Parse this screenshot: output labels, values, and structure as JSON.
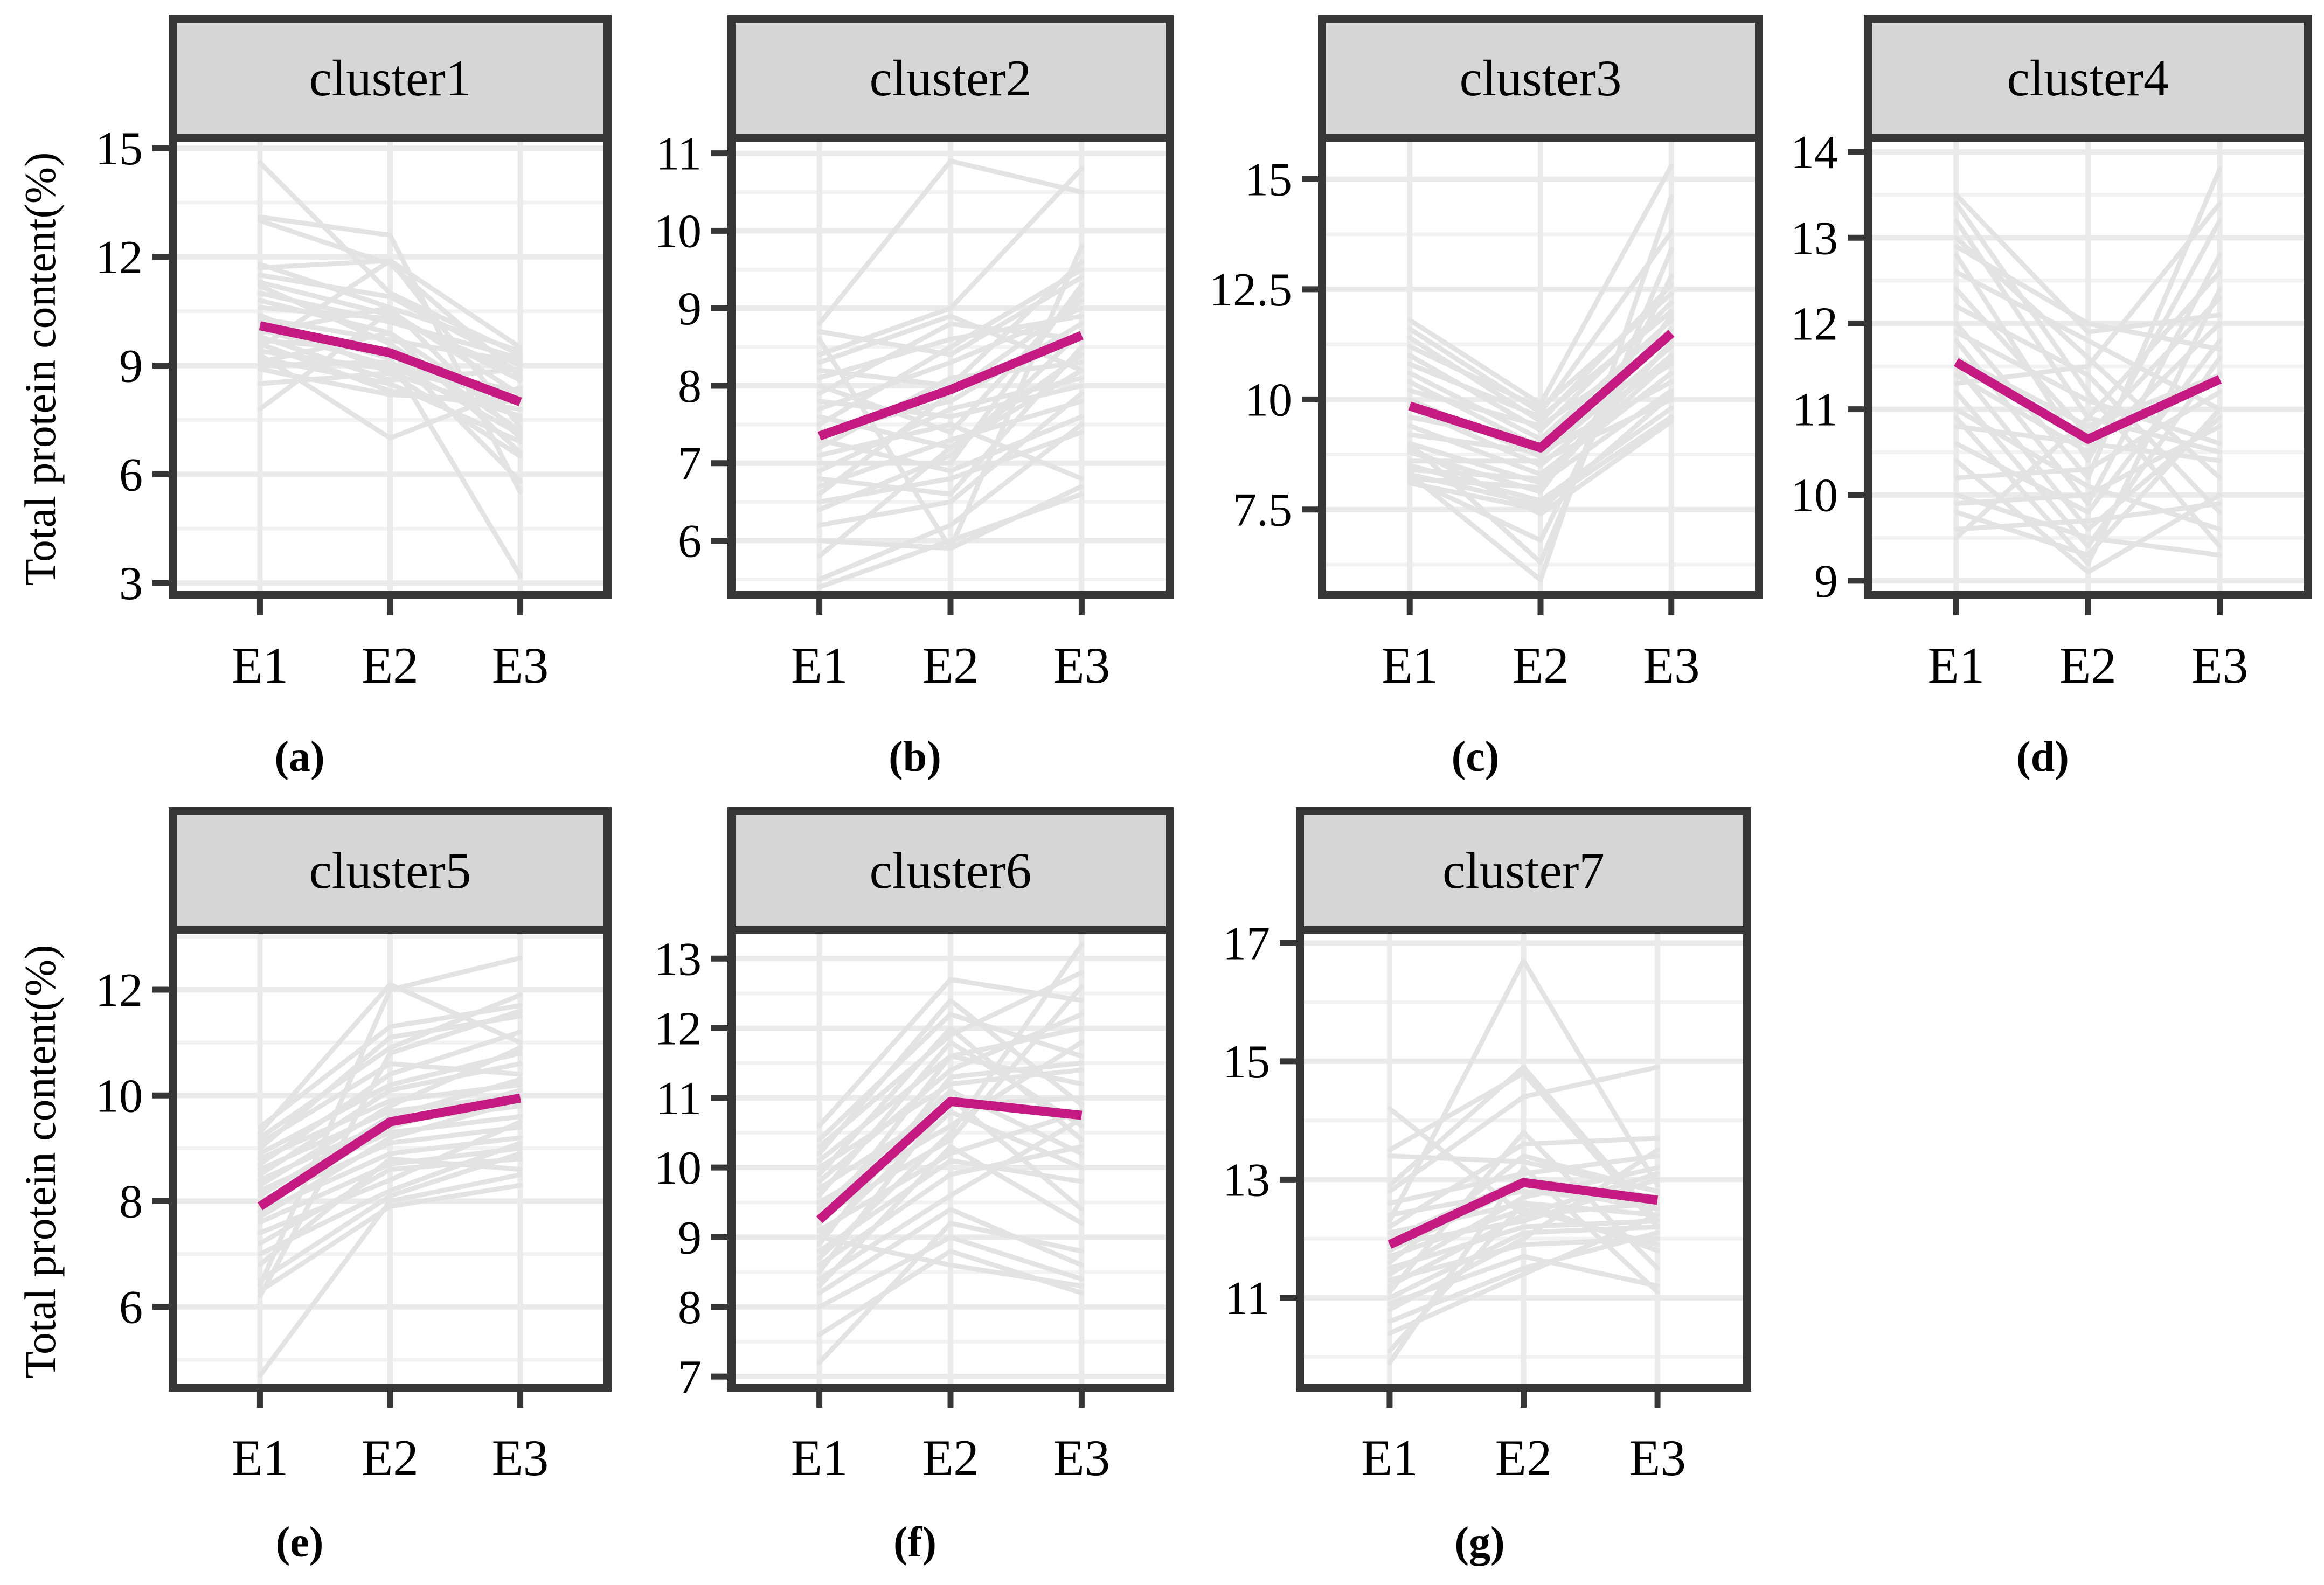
{
  "figure": {
    "ylabel": "Total protein content(%)",
    "categories": [
      "E1",
      "E2",
      "E3"
    ]
  },
  "colors": {
    "mean_line": "#C41A81",
    "member_line": "#E3E3E3",
    "grid_major": "#EAEAEA",
    "grid_minor": "#F2F2F2",
    "panel_border": "#363636",
    "header_fill": "#D6D6D6",
    "text": "#000000",
    "background": "#FFFFFF"
  },
  "chart_data": [
    {
      "type": "line",
      "title": "cluster1",
      "caption": "(a)",
      "categories": [
        "E1",
        "E2",
        "E3"
      ],
      "xlabel": "",
      "ylabel": "Total protein content(%)",
      "show_ylabel": true,
      "grid": true,
      "ylim": [
        2.78,
        15.18
      ],
      "y_ticks": [
        "3",
        "6",
        "9",
        "12",
        "15"
      ],
      "y_tick_values": [
        3,
        6,
        9,
        12,
        15
      ],
      "y_minor": [
        4.5,
        7.5,
        10.5,
        13.5
      ],
      "series": [
        {
          "name": "mean",
          "values": [
            10.1,
            9.35,
            8.0
          ]
        }
      ],
      "members": [
        [
          14.6,
          11.0,
          9.3
        ],
        [
          13.1,
          12.6,
          5.5
        ],
        [
          13.0,
          11.8,
          8.7
        ],
        [
          11.8,
          10.6,
          9.4
        ],
        [
          11.7,
          11.9,
          7.3
        ],
        [
          11.5,
          10.9,
          9.0
        ],
        [
          11.3,
          10.4,
          8.6
        ],
        [
          11.2,
          9.6,
          7.2
        ],
        [
          11.0,
          10.2,
          9.2
        ],
        [
          10.8,
          9.9,
          6.6
        ],
        [
          10.6,
          10.3,
          8.8
        ],
        [
          10.4,
          8.8,
          7.6
        ],
        [
          10.3,
          9.7,
          9.1
        ],
        [
          10.2,
          9.2,
          3.2
        ],
        [
          10.0,
          9.0,
          8.3
        ],
        [
          9.9,
          10.6,
          7.0
        ],
        [
          9.8,
          8.6,
          8.9
        ],
        [
          9.7,
          9.4,
          5.8
        ],
        [
          9.6,
          8.3,
          7.8
        ],
        [
          9.5,
          11.9,
          9.5
        ],
        [
          9.4,
          8.9,
          8.1
        ],
        [
          9.3,
          7.0,
          8.4
        ],
        [
          9.2,
          8.5,
          6.9
        ],
        [
          9.1,
          9.9,
          7.5
        ],
        [
          8.9,
          8.2,
          8.0
        ],
        [
          8.5,
          8.8,
          6.5
        ],
        [
          7.8,
          10.5,
          8.2
        ],
        [
          9.0,
          9.1,
          7.1
        ]
      ]
    },
    {
      "type": "line",
      "title": "cluster2",
      "caption": "(b)",
      "categories": [
        "E1",
        "E2",
        "E3"
      ],
      "xlabel": "",
      "ylabel": "Total protein content(%)",
      "show_ylabel": false,
      "grid": true,
      "ylim": [
        5.35,
        11.15
      ],
      "y_ticks": [
        "6",
        "7",
        "8",
        "9",
        "10",
        "11"
      ],
      "y_tick_values": [
        6,
        7,
        8,
        9,
        10,
        11
      ],
      "y_minor": [
        5.5,
        6.5,
        7.5,
        8.5,
        9.5,
        10.5
      ],
      "series": [
        {
          "name": "mean",
          "values": [
            7.35,
            7.95,
            8.65
          ]
        }
      ],
      "members": [
        [
          8.8,
          10.9,
          10.5
        ],
        [
          8.7,
          8.4,
          9.4
        ],
        [
          8.4,
          9.0,
          10.8
        ],
        [
          8.3,
          8.9,
          8.2
        ],
        [
          8.2,
          8.0,
          9.6
        ],
        [
          8.1,
          8.6,
          8.9
        ],
        [
          8.0,
          7.4,
          9.2
        ],
        [
          7.9,
          8.8,
          8.6
        ],
        [
          7.8,
          7.6,
          8.0
        ],
        [
          7.7,
          8.3,
          9.0
        ],
        [
          7.6,
          7.2,
          8.4
        ],
        [
          7.5,
          8.5,
          9.5
        ],
        [
          7.4,
          7.8,
          8.8
        ],
        [
          7.3,
          6.9,
          7.6
        ],
        [
          7.2,
          8.1,
          8.3
        ],
        [
          7.1,
          7.5,
          6.8
        ],
        [
          7.0,
          7.0,
          9.3
        ],
        [
          6.9,
          7.7,
          8.1
        ],
        [
          6.8,
          6.6,
          8.5
        ],
        [
          6.7,
          7.3,
          7.8
        ],
        [
          6.6,
          7.9,
          9.1
        ],
        [
          6.5,
          6.8,
          7.4
        ],
        [
          6.4,
          7.1,
          8.7
        ],
        [
          6.2,
          6.5,
          7.9
        ],
        [
          6.0,
          5.9,
          6.7
        ],
        [
          5.8,
          7.2,
          8.2
        ],
        [
          5.5,
          6.2,
          7.5
        ],
        [
          5.4,
          6.0,
          6.6
        ],
        [
          8.6,
          5.9,
          9.8
        ]
      ]
    },
    {
      "type": "line",
      "title": "cluster3",
      "caption": "(c)",
      "categories": [
        "E1",
        "E2",
        "E3"
      ],
      "xlabel": "",
      "ylabel": "Total protein content(%)",
      "show_ylabel": false,
      "grid": true,
      "ylim": [
        5.65,
        15.85
      ],
      "y_ticks": [
        "7.5",
        "10",
        "12.5",
        "15"
      ],
      "y_tick_values": [
        7.5,
        10,
        12.5,
        15
      ],
      "y_minor": [
        6.25,
        8.75,
        11.25,
        13.75
      ],
      "series": [
        {
          "name": "mean",
          "values": [
            9.85,
            8.9,
            11.5
          ]
        }
      ],
      "members": [
        [
          11.8,
          9.9,
          15.3
        ],
        [
          11.6,
          9.7,
          13.8
        ],
        [
          11.4,
          9.5,
          12.6
        ],
        [
          11.2,
          9.8,
          12.4
        ],
        [
          11.0,
          9.3,
          12.2
        ],
        [
          10.8,
          9.6,
          12.0
        ],
        [
          10.6,
          9.1,
          11.8
        ],
        [
          10.4,
          8.9,
          11.6
        ],
        [
          10.2,
          9.4,
          11.4
        ],
        [
          10.0,
          8.7,
          11.2
        ],
        [
          9.8,
          8.5,
          11.0
        ],
        [
          9.6,
          9.0,
          10.8
        ],
        [
          9.4,
          8.3,
          10.6
        ],
        [
          9.2,
          8.8,
          10.4
        ],
        [
          9.0,
          8.1,
          10.2
        ],
        [
          8.8,
          7.9,
          11.9
        ],
        [
          8.6,
          8.6,
          10.0
        ],
        [
          8.5,
          7.7,
          9.8
        ],
        [
          8.4,
          8.2,
          10.9
        ],
        [
          8.3,
          7.6,
          9.6
        ],
        [
          8.2,
          8.0,
          11.3
        ],
        [
          8.1,
          7.5,
          10.1
        ],
        [
          8.2,
          6.8,
          12.8
        ],
        [
          8.3,
          5.9,
          14.6
        ],
        [
          9.0,
          6.3,
          13.4
        ],
        [
          8.9,
          7.4,
          9.5
        ]
      ]
    },
    {
      "type": "line",
      "title": "cluster4",
      "caption": "(d)",
      "categories": [
        "E1",
        "E2",
        "E3"
      ],
      "xlabel": "",
      "ylabel": "Total protein content(%)",
      "show_ylabel": false,
      "grid": true,
      "ylim": [
        8.88,
        14.12
      ],
      "y_ticks": [
        "9",
        "10",
        "11",
        "12",
        "13",
        "14"
      ],
      "y_tick_values": [
        9,
        10,
        11,
        12,
        13,
        14
      ],
      "y_minor": [
        9.5,
        10.5,
        11.5,
        12.5,
        13.5
      ],
      "series": [
        {
          "name": "mean",
          "values": [
            11.55,
            10.65,
            11.35
          ]
        }
      ],
      "members": [
        [
          13.5,
          11.9,
          12.1
        ],
        [
          13.4,
          11.2,
          9.4
        ],
        [
          13.2,
          10.9,
          12.6
        ],
        [
          13.0,
          11.6,
          10.2
        ],
        [
          12.8,
          10.4,
          13.2
        ],
        [
          12.6,
          11.8,
          11.0
        ],
        [
          12.4,
          10.7,
          12.3
        ],
        [
          12.2,
          11.4,
          9.8
        ],
        [
          12.0,
          10.2,
          13.8
        ],
        [
          11.9,
          11.1,
          10.6
        ],
        [
          11.8,
          9.9,
          12.8
        ],
        [
          11.6,
          10.8,
          11.4
        ],
        [
          11.5,
          9.6,
          10.9
        ],
        [
          11.4,
          10.5,
          12.0
        ],
        [
          11.2,
          9.4,
          11.6
        ],
        [
          11.0,
          10.1,
          9.6
        ],
        [
          10.9,
          9.2,
          12.4
        ],
        [
          10.8,
          10.6,
          10.4
        ],
        [
          10.6,
          9.8,
          11.8
        ],
        [
          10.4,
          9.1,
          10.0
        ],
        [
          10.2,
          10.3,
          11.2
        ],
        [
          10.0,
          9.5,
          9.3
        ],
        [
          9.9,
          10.0,
          10.8
        ],
        [
          9.8,
          9.3,
          11.0
        ],
        [
          9.6,
          9.7,
          9.9
        ],
        [
          9.5,
          10.9,
          10.5
        ],
        [
          12.9,
          12.0,
          11.7
        ],
        [
          11.3,
          11.5,
          13.4
        ]
      ]
    },
    {
      "type": "line",
      "title": "cluster5",
      "caption": "(e)",
      "categories": [
        "E1",
        "E2",
        "E3"
      ],
      "xlabel": "",
      "ylabel": "Total protein content(%)",
      "show_ylabel": true,
      "grid": true,
      "ylim": [
        4.55,
        13.05
      ],
      "y_ticks": [
        "6",
        "8",
        "10",
        "12"
      ],
      "y_tick_values": [
        6,
        8,
        10,
        12
      ],
      "y_minor": [
        5,
        7,
        9,
        11,
        13
      ],
      "series": [
        {
          "name": "mean",
          "values": [
            7.9,
            9.5,
            9.95
          ]
        }
      ],
      "members": [
        [
          9.4,
          11.3,
          11.7
        ],
        [
          9.3,
          12.1,
          11.0
        ],
        [
          9.2,
          10.9,
          11.9
        ],
        [
          9.1,
          10.6,
          10.4
        ],
        [
          9.0,
          11.1,
          11.5
        ],
        [
          8.9,
          10.2,
          10.8
        ],
        [
          8.8,
          9.9,
          10.2
        ],
        [
          8.7,
          10.4,
          11.2
        ],
        [
          8.6,
          9.7,
          10.0
        ],
        [
          8.5,
          10.1,
          10.6
        ],
        [
          8.4,
          9.5,
          9.8
        ],
        [
          8.3,
          9.8,
          10.9
        ],
        [
          8.2,
          9.3,
          9.6
        ],
        [
          8.1,
          9.6,
          10.3
        ],
        [
          8.0,
          9.1,
          9.4
        ],
        [
          7.9,
          9.4,
          10.1
        ],
        [
          7.8,
          8.9,
          9.2
        ],
        [
          7.7,
          9.2,
          9.9
        ],
        [
          7.6,
          8.7,
          9.0
        ],
        [
          7.4,
          8.4,
          9.5
        ],
        [
          7.2,
          8.6,
          8.8
        ],
        [
          7.0,
          8.2,
          9.1
        ],
        [
          6.8,
          8.8,
          8.6
        ],
        [
          6.5,
          8.1,
          8.9
        ],
        [
          6.3,
          7.9,
          8.3
        ],
        [
          6.2,
          10.8,
          11.6
        ],
        [
          4.7,
          8.0,
          8.5
        ],
        [
          6.4,
          12.0,
          12.6
        ]
      ]
    },
    {
      "type": "line",
      "title": "cluster6",
      "caption": "(f)",
      "categories": [
        "E1",
        "E2",
        "E3"
      ],
      "xlabel": "",
      "ylabel": "Total protein content(%)",
      "show_ylabel": false,
      "grid": true,
      "ylim": [
        6.9,
        13.35
      ],
      "y_ticks": [
        "7",
        "8",
        "9",
        "10",
        "11",
        "12",
        "13"
      ],
      "y_tick_values": [
        7,
        8,
        9,
        10,
        11,
        12,
        13
      ],
      "y_minor": [
        7.5,
        8.5,
        9.5,
        10.5,
        11.5,
        12.5
      ],
      "series": [
        {
          "name": "mean",
          "values": [
            9.25,
            10.95,
            10.75
          ]
        }
      ],
      "members": [
        [
          10.6,
          12.7,
          12.4
        ],
        [
          10.4,
          12.2,
          11.6
        ],
        [
          10.3,
          11.9,
          12.8
        ],
        [
          10.2,
          12.4,
          10.9
        ],
        [
          10.1,
          11.6,
          12.0
        ],
        [
          10.0,
          11.2,
          11.4
        ],
        [
          9.9,
          12.0,
          10.4
        ],
        [
          9.8,
          11.4,
          12.2
        ],
        [
          9.7,
          10.9,
          11.0
        ],
        [
          9.6,
          11.8,
          10.6
        ],
        [
          9.5,
          10.6,
          11.8
        ],
        [
          9.4,
          11.1,
          10.2
        ],
        [
          9.3,
          10.4,
          12.6
        ],
        [
          9.2,
          11.6,
          11.2
        ],
        [
          9.1,
          10.2,
          10.8
        ],
        [
          9.0,
          10.8,
          10.0
        ],
        [
          8.9,
          11.3,
          11.5
        ],
        [
          8.8,
          10.1,
          9.8
        ],
        [
          8.7,
          10.5,
          13.2
        ],
        [
          8.6,
          9.9,
          10.3
        ],
        [
          8.5,
          11.0,
          9.4
        ],
        [
          8.4,
          9.6,
          10.7
        ],
        [
          8.3,
          10.3,
          9.2
        ],
        [
          8.2,
          9.4,
          8.6
        ],
        [
          8.0,
          9.0,
          8.4
        ],
        [
          7.6,
          8.8,
          8.2
        ],
        [
          7.2,
          9.2,
          8.8
        ],
        [
          9.0,
          8.6,
          8.3
        ]
      ]
    },
    {
      "type": "line",
      "title": "cluster7",
      "caption": "(g)",
      "categories": [
        "E1",
        "E2",
        "E3"
      ],
      "xlabel": "",
      "ylabel": "Total protein content(%)",
      "show_ylabel": false,
      "grid": true,
      "ylim": [
        9.55,
        17.15
      ],
      "y_ticks": [
        "11",
        "13",
        "15",
        "17"
      ],
      "y_tick_values": [
        11,
        13,
        15,
        17
      ],
      "y_minor": [
        10,
        12,
        14,
        16
      ],
      "series": [
        {
          "name": "mean",
          "values": [
            11.9,
            12.95,
            12.65
          ]
        }
      ],
      "members": [
        [
          14.2,
          12.4,
          13.1
        ],
        [
          13.5,
          14.8,
          12.2
        ],
        [
          13.4,
          13.3,
          12.8
        ],
        [
          12.8,
          14.4,
          14.9
        ],
        [
          12.6,
          13.1,
          13.4
        ],
        [
          12.4,
          12.8,
          12.6
        ],
        [
          12.3,
          16.7,
          12.9
        ],
        [
          12.2,
          13.6,
          13.7
        ],
        [
          12.1,
          12.6,
          12.4
        ],
        [
          12.0,
          13.0,
          12.7
        ],
        [
          11.9,
          12.3,
          13.0
        ],
        [
          11.8,
          12.9,
          12.5
        ],
        [
          11.7,
          12.5,
          11.9
        ],
        [
          11.6,
          13.4,
          12.8
        ],
        [
          11.5,
          12.2,
          12.3
        ],
        [
          11.4,
          12.7,
          13.2
        ],
        [
          11.3,
          11.9,
          12.0
        ],
        [
          11.2,
          12.4,
          12.6
        ],
        [
          11.1,
          13.8,
          11.5
        ],
        [
          11.0,
          12.1,
          12.2
        ],
        [
          10.9,
          11.7,
          11.2
        ],
        [
          10.8,
          12.0,
          13.5
        ],
        [
          10.6,
          11.5,
          12.1
        ],
        [
          12.9,
          14.9,
          12.3
        ],
        [
          10.4,
          11.4,
          12.4
        ],
        [
          10.1,
          12.6,
          11.8
        ],
        [
          9.9,
          13.2,
          11.1
        ]
      ]
    }
  ]
}
